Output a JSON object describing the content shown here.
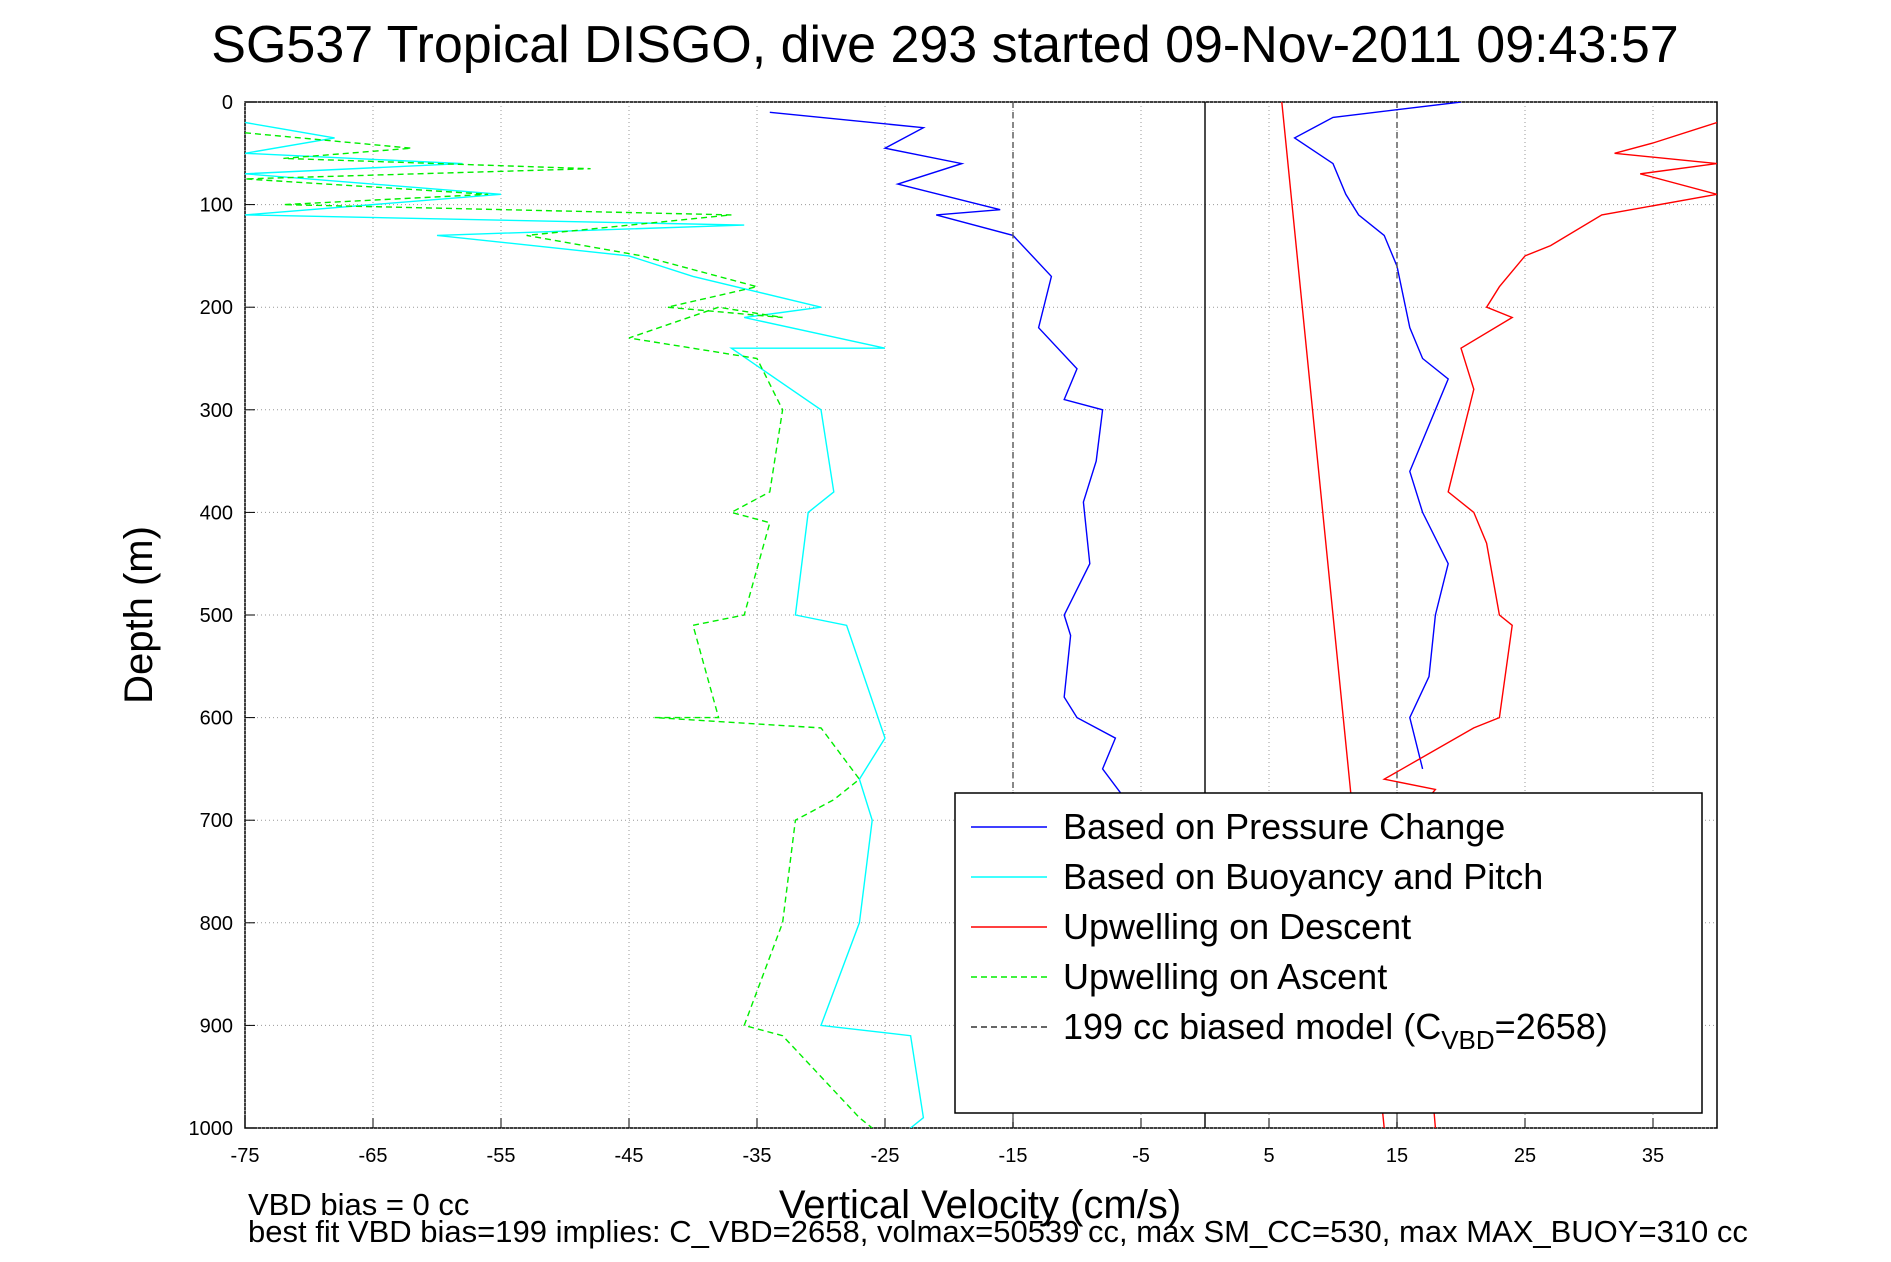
{
  "chart_data": {
    "type": "line",
    "title": "SG537 Tropical DISGO, dive 293 started 09-Nov-2011 09:43:57",
    "xlabel": "Vertical Velocity (cm/s)",
    "ylabel": "Depth (m)",
    "xlim": [
      -75,
      40
    ],
    "ylim": [
      0,
      1000
    ],
    "y_reversed": true,
    "grid": true,
    "xticks": [
      -75,
      -65,
      -55,
      -45,
      -35,
      -25,
      -15,
      -5,
      5,
      15,
      25,
      35
    ],
    "yticks": [
      0,
      100,
      200,
      300,
      400,
      500,
      600,
      700,
      800,
      900,
      1000
    ],
    "legend_position": "bottom-right",
    "series": [
      {
        "name": "Based on Pressure Change",
        "color": "#0000ff",
        "style": "solid",
        "x": [
          -34,
          -22,
          -25,
          -19,
          -24,
          -16,
          -21,
          -15,
          -12,
          -13,
          -10,
          -11,
          -8,
          -8.5,
          -9.5,
          -9,
          -11,
          -10.5,
          -11,
          -10,
          -7,
          -8,
          -5,
          -4,
          10,
          10,
          9,
          11,
          9,
          10,
          16,
          13,
          14,
          15,
          18,
          20,
          17,
          18,
          20,
          17,
          15,
          15.5,
          17,
          15,
          17,
          19,
          17,
          16,
          17,
          17,
          18,
          15,
          17,
          12,
          20
        ],
        "y": [
          10,
          25,
          45,
          60,
          80,
          105,
          110,
          130,
          170,
          220,
          260,
          290,
          300,
          350,
          390,
          450,
          500,
          520,
          580,
          600,
          620,
          650,
          700,
          750,
          750,
          700,
          650,
          600,
          550,
          520,
          500,
          450,
          400,
          300,
          270,
          250,
          230,
          200,
          150,
          100,
          50,
          20,
          10,
          5,
          0,
          0,
          0,
          0,
          0,
          0,
          0,
          0,
          0,
          0,
          0
        ],
        "segments": [
          {
            "x": [
              -34,
              -22,
              -25,
              -19,
              -24,
              -16,
              -21,
              -15,
              -12,
              -13,
              -10,
              -11,
              -8,
              -8.5,
              -9.5,
              -9,
              -11,
              -10.5,
              -11,
              -10,
              -7,
              -8,
              -5
            ],
            "y": [
              10,
              25,
              45,
              60,
              80,
              105,
              110,
              130,
              170,
              220,
              260,
              290,
              300,
              350,
              390,
              450,
              500,
              520,
              580,
              600,
              620,
              650,
              700
            ]
          },
          {
            "x": [
              20,
              10,
              7,
              10,
              11,
              12,
              14,
              15,
              16,
              17,
              19,
              18,
              17,
              16,
              17,
              19,
              18,
              17.5,
              16,
              17
            ],
            "y": [
              0,
              15,
              35,
              60,
              90,
              110,
              130,
              160,
              220,
              250,
              270,
              300,
              330,
              360,
              400,
              450,
              500,
              560,
              600,
              650
            ]
          }
        ]
      },
      {
        "name": "Based on Buoyancy and Pitch",
        "color": "#00ffff",
        "style": "solid",
        "x": [
          -75,
          -68,
          -75,
          -58,
          -75,
          -55,
          -75,
          -36,
          -60,
          -45,
          -40,
          -30,
          -36,
          -25,
          -37,
          -30,
          -29,
          -31,
          -32,
          -28,
          -25,
          -27,
          -26,
          -27,
          -30,
          -23,
          -22,
          -23
        ],
        "y": [
          20,
          35,
          50,
          60,
          70,
          90,
          110,
          120,
          130,
          150,
          170,
          200,
          210,
          240,
          240,
          300,
          380,
          400,
          500,
          510,
          620,
          660,
          700,
          800,
          900,
          910,
          990,
          1000
        ]
      },
      {
        "name": "Upwelling on Descent",
        "color": "#ff0000",
        "style": "solid",
        "x": [
          40,
          35,
          32,
          40,
          34,
          40,
          31,
          27,
          25,
          23,
          22,
          24,
          20,
          21,
          20,
          19,
          21,
          22,
          23,
          24,
          23,
          21,
          14,
          18,
          16,
          18
        ],
        "y": [
          20,
          40,
          50,
          60,
          70,
          90,
          110,
          140,
          150,
          180,
          200,
          210,
          240,
          280,
          330,
          380,
          400,
          430,
          500,
          510,
          600,
          610,
          660,
          670,
          700,
          1000
        ]
      },
      {
        "name": "Upwelling on Ascent",
        "color": "#00ee00",
        "style": "dashed",
        "x": [
          -75,
          -62,
          -72,
          -48,
          -75,
          -56,
          -72,
          -37,
          -53,
          -44,
          -35,
          -42,
          -33,
          -38,
          -45,
          -35,
          -33,
          -34,
          -37,
          -34,
          -36,
          -40,
          -38,
          -43,
          -30,
          -27,
          -29,
          -32,
          -33,
          -36,
          -33,
          -27,
          -26
        ],
        "y": [
          30,
          45,
          55,
          65,
          75,
          90,
          100,
          110,
          130,
          150,
          180,
          200,
          210,
          200,
          230,
          250,
          300,
          380,
          400,
          410,
          500,
          510,
          600,
          600,
          610,
          660,
          680,
          700,
          800,
          900,
          910,
          990,
          1000
        ]
      },
      {
        "name": "199 cc biased model (C_VBD=2658)",
        "color": "#555555",
        "style": "dashed",
        "x": [
          -15,
          -15
        ],
        "y": [
          0,
          1000
        ],
        "mirror_x": [
          15,
          15
        ]
      }
    ],
    "reference_lines": [
      {
        "x": [
          0,
          0
        ],
        "y": [
          0,
          1000
        ],
        "color": "#000000"
      },
      {
        "x": [
          6,
          14
        ],
        "y": [
          0,
          1000
        ],
        "color": "#ff0000",
        "label": ""
      }
    ]
  },
  "legend": [
    {
      "label": "Based on Pressure Change",
      "color": "#0000ff",
      "dash": false,
      "sub": ""
    },
    {
      "label": "Based on Buoyancy and Pitch",
      "color": "#00ffff",
      "dash": false,
      "sub": ""
    },
    {
      "label": "Upwelling on Descent",
      "color": "#ff0000",
      "dash": false,
      "sub": ""
    },
    {
      "label": "Upwelling on Ascent",
      "color": "#00ee00",
      "dash": true,
      "sub": ""
    },
    {
      "label": "199 cc biased model (C",
      "color": "#333333",
      "dash": true,
      "sub": "VBD",
      "after": "=2658)"
    }
  ],
  "footer": {
    "line1": "VBD bias = 0 cc",
    "line2": "best fit VBD bias=199 implies: C_VBD=2658, volmax=50539 cc, max SM_CC=530, max MAX_BUOY=310 cc"
  }
}
